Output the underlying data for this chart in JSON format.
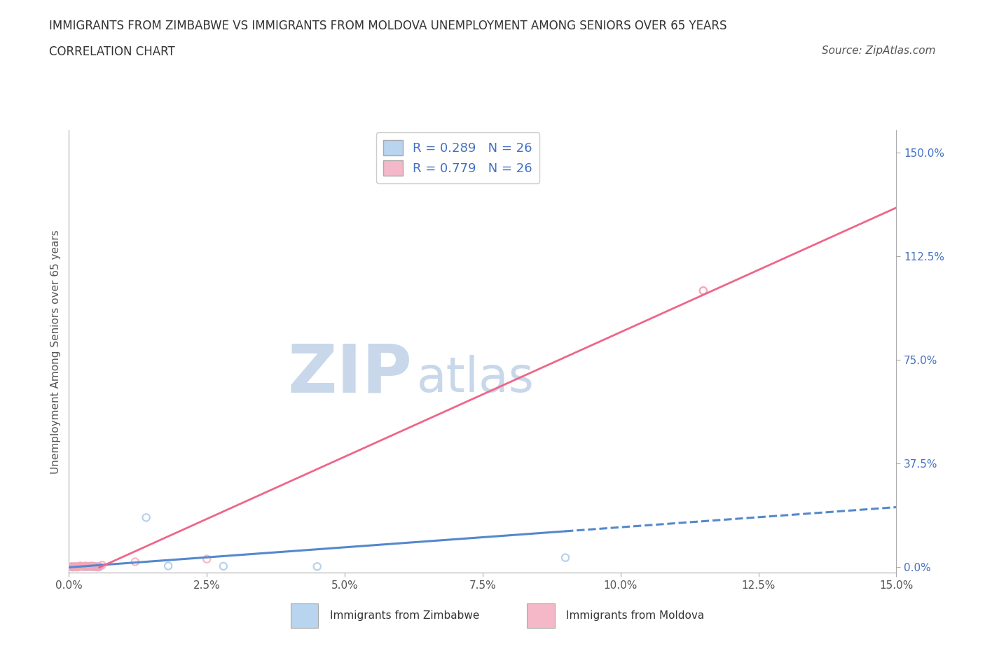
{
  "title_line1": "IMMIGRANTS FROM ZIMBABWE VS IMMIGRANTS FROM MOLDOVA UNEMPLOYMENT AMONG SENIORS OVER 65 YEARS",
  "title_line2": "CORRELATION CHART",
  "source_text": "Source: ZipAtlas.com",
  "ylabel": "Unemployment Among Seniors over 65 years",
  "xlabel_vals": [
    0.0,
    2.5,
    5.0,
    7.5,
    10.0,
    12.5,
    15.0
  ],
  "right_yticks_vals": [
    0.0,
    37.5,
    75.0,
    112.5,
    150.0
  ],
  "xlim": [
    0.0,
    15.0
  ],
  "ylim": [
    -2.0,
    158.0
  ],
  "R_zimbabwe": 0.289,
  "N_zimbabwe": 26,
  "R_moldova": 0.779,
  "N_moldova": 26,
  "color_zimbabwe_scatter": "#a8c8e8",
  "color_moldova_scatter": "#f4a8b8",
  "color_zimbabwe_line": "#5588cc",
  "color_moldova_line": "#ee6688",
  "color_text_blue": "#4472c4",
  "watermark_zip": "ZIP",
  "watermark_atlas": "atlas",
  "watermark_color": "#c8d8ea",
  "grid_color": "#cccccc",
  "background_color": "#ffffff",
  "zimbabwe_scatter_x": [
    0.05,
    0.3,
    0.15,
    0.5,
    0.4,
    0.2,
    0.1,
    0.35,
    0.25,
    0.45,
    0.08,
    0.18,
    0.28,
    0.38,
    0.48,
    0.55,
    0.12,
    0.22,
    0.32,
    0.42,
    0.52,
    1.8,
    2.8,
    4.5,
    9.0,
    1.4
  ],
  "zimbabwe_scatter_y": [
    0.2,
    0.5,
    0.1,
    0.3,
    0.2,
    0.4,
    0.15,
    0.25,
    0.35,
    0.2,
    0.1,
    0.3,
    0.2,
    0.4,
    0.3,
    0.15,
    0.25,
    0.35,
    0.2,
    0.3,
    0.1,
    0.5,
    0.4,
    0.3,
    3.5,
    18.0
  ],
  "moldova_scatter_x": [
    0.05,
    0.2,
    0.1,
    0.4,
    0.3,
    0.15,
    0.08,
    0.28,
    0.18,
    0.38,
    0.06,
    0.22,
    0.32,
    0.42,
    0.48,
    0.55,
    0.12,
    0.25,
    0.35,
    0.45,
    0.52,
    1.2,
    2.5,
    0.6,
    11.5,
    11.5
  ],
  "moldova_scatter_y": [
    0.3,
    0.5,
    0.2,
    0.4,
    0.3,
    0.25,
    0.15,
    0.35,
    0.2,
    0.3,
    0.1,
    0.4,
    0.3,
    0.5,
    0.25,
    0.35,
    0.2,
    0.3,
    0.4,
    0.2,
    0.15,
    2.0,
    3.0,
    0.8,
    100.0,
    100.0
  ],
  "legend_box_color_zim": "#b8d4ee",
  "legend_box_color_mol": "#f4b8c8",
  "font_size_title": 12,
  "font_size_subtitle": 12,
  "font_size_legend": 13,
  "font_size_ticks": 11,
  "font_size_ylabel": 11,
  "font_size_source": 11,
  "font_size_watermark_zip": 70,
  "font_size_watermark_atlas": 50
}
